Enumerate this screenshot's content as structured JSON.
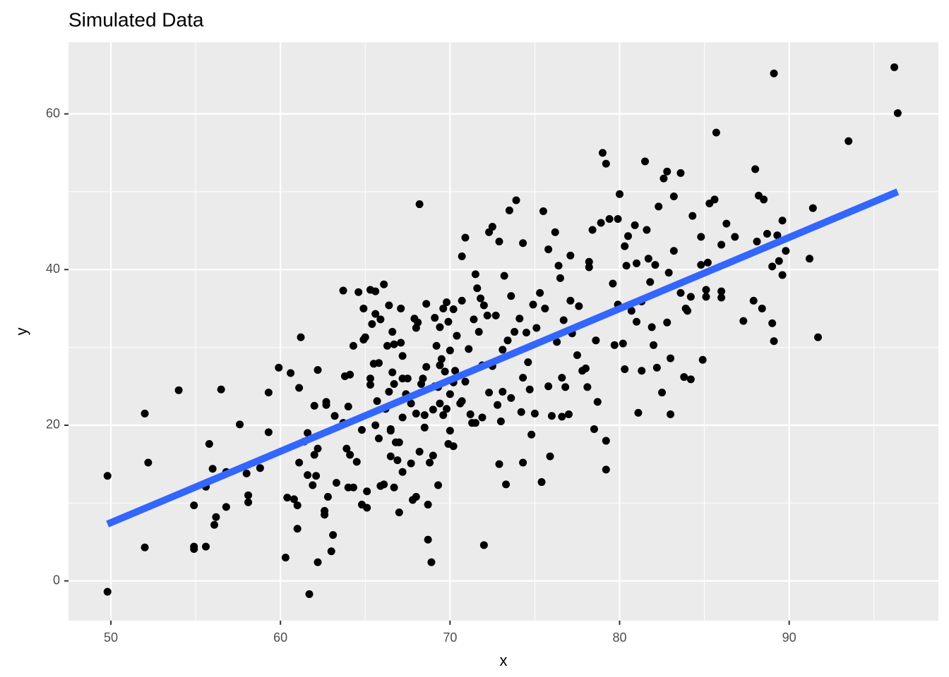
{
  "chart_data": {
    "type": "scatter",
    "title": "Simulated Data",
    "x_label": "x",
    "y_label": "y",
    "xlim": [
      47.5,
      98.8
    ],
    "ylim": [
      -5.1,
      69.2
    ],
    "xticks": [
      50,
      60,
      70,
      80,
      90
    ],
    "yticks": [
      0,
      20,
      40,
      60
    ],
    "x_minor_ticks": [
      55,
      65,
      75,
      85,
      95
    ],
    "y_minor_ticks": [
      10,
      30,
      50
    ],
    "grid": true,
    "color": "#000000",
    "x": [
      49.8,
      49.8,
      52,
      52,
      52.2,
      54,
      54.9,
      54.9,
      54.9,
      55.6,
      55.6,
      55.8,
      56,
      56.1,
      56.2,
      56.5,
      56.8,
      56.8,
      57.6,
      58,
      58.1,
      58.1,
      58.8,
      59.3,
      59.3,
      59.9,
      60.3,
      60.4,
      60.6,
      60.8,
      61,
      61,
      61.1,
      61.1,
      61.2,
      61.4,
      61.6,
      61.6,
      61.7,
      61.9,
      62,
      62,
      62.1,
      62.2,
      62.2,
      62.2,
      62.6,
      62.6,
      62.7,
      62.7,
      62.8,
      63,
      63.1,
      63.2,
      63.3,
      63.7,
      63.7,
      63.8,
      63.9,
      64,
      64,
      64.1,
      64.1,
      64.3,
      64.3,
      64.5,
      64.6,
      64.8,
      64.8,
      64.9,
      64.9,
      65.0,
      65.1,
      65.1,
      65.3,
      65.3,
      65.3,
      65.4,
      65.5,
      65.6,
      65.6,
      65.6,
      65.7,
      65.8,
      65.8,
      65.9,
      65.9,
      66.1,
      66.1,
      66.2,
      66.3,
      66.4,
      66.4,
      66.5,
      66.5,
      66.5,
      66.6,
      66.6,
      66.7,
      66.7,
      66.7,
      66.8,
      66.9,
      67,
      67,
      67.1,
      67.1,
      67.2,
      67.2,
      67.2,
      67.2,
      67.4,
      67.5,
      67.7,
      67.7,
      67.8,
      68.2,
      67.9,
      68,
      68,
      68,
      68.1,
      68.2,
      68.3,
      68.4,
      68.5,
      68.5,
      68.6,
      68.6,
      68.7,
      68.7,
      68.8,
      68.9,
      69,
      69,
      69.1,
      69.1,
      69.2,
      69.3,
      69.3,
      69.4,
      69.4,
      69.4,
      69.5,
      69.6,
      69.6,
      69.7,
      69.8,
      69.8,
      69.9,
      69.9,
      70,
      70,
      70,
      70.2,
      70.2,
      70.2,
      70.3,
      70.4,
      70.6,
      70.7,
      70.7,
      70.9,
      70.7,
      70.9,
      71.1,
      71.2,
      71.3,
      71.4,
      71.5,
      71.5,
      71.6,
      71.7,
      71.8,
      71.9,
      71.9,
      72.0,
      72.0,
      72.2,
      72.3,
      72.3,
      72.5,
      72.5,
      72.7,
      72.8,
      72.9,
      72.9,
      73,
      73.1,
      73.1,
      73.2,
      73.3,
      73.4,
      73.6,
      73.6,
      73.5,
      73.8,
      73.9,
      74.1,
      74.2,
      74.3,
      74.3,
      74.3,
      74.5,
      74.6,
      74.7,
      74.8,
      74.9,
      75,
      75.1,
      75.3,
      75.4,
      75.5,
      75.6,
      75.8,
      75.8,
      75.9,
      76,
      76.2,
      76.3,
      76.4,
      76.5,
      76.6,
      76.6,
      76.7,
      76.8,
      77,
      77.1,
      77.1,
      77.2,
      77.5,
      77.6,
      77.8,
      78,
      78.1,
      78.2,
      78.2,
      78.4,
      78.5,
      78.6,
      78.7,
      78.9,
      79,
      79.2,
      79.2,
      79.2,
      79.4,
      79.6,
      79.7,
      79.9,
      79.9,
      80,
      80.2,
      80.3,
      80.3,
      80.4,
      80.5,
      80.7,
      80.9,
      81,
      81,
      81.1,
      81.3,
      81.3,
      81.5,
      81.6,
      81.7,
      81.8,
      81.9,
      82,
      82.1,
      82.2,
      82.3,
      82.5,
      82.6,
      82.8,
      82.8,
      82.9,
      83,
      83,
      83.2,
      83.2,
      83.6,
      83.6,
      83.8,
      83.9,
      84,
      84.2,
      84.2,
      84.3,
      84.8,
      84.8,
      84.9,
      85.1,
      85.1,
      85.2,
      85.3,
      85.7,
      85.6,
      86,
      86,
      86,
      86.3,
      86.8,
      87.3,
      87.9,
      88,
      88.1,
      88.2,
      88.5,
      88.4,
      88.7,
      89,
      89,
      89.1,
      89.3,
      89.4,
      89.6,
      89.6,
      89.8,
      89.1,
      91.2,
      91.4,
      91.7,
      93.5,
      96.2,
      96.4
    ],
    "y": [
      13.5,
      -1.4,
      21.5,
      4.3,
      15.2,
      24.5,
      9.7,
      4.4,
      4.1,
      12.1,
      4.4,
      17.6,
      14.4,
      7.2,
      8.2,
      24.6,
      9.5,
      14,
      20.1,
      13.8,
      11,
      10.1,
      14.5,
      19.1,
      24.2,
      27.4,
      3,
      10.7,
      26.7,
      10.5,
      9.7,
      6.7,
      24.8,
      15.2,
      31.3,
      17.9,
      19,
      13.6,
      -1.7,
      12.3,
      22.5,
      16.2,
      13.5,
      2.4,
      17,
      27.1,
      9,
      8.5,
      23,
      22.6,
      10.8,
      3.8,
      5.9,
      21.2,
      12.6,
      20.3,
      37.3,
      26.3,
      17,
      12,
      22.4,
      16.2,
      26.5,
      30.2,
      12,
      15.3,
      37.1,
      19.4,
      9.8,
      31,
      35,
      31.3,
      9.4,
      11.5,
      37.4,
      25.2,
      26,
      33,
      27.9,
      20,
      37.2,
      34.3,
      23.1,
      18.3,
      28,
      12.2,
      33.6,
      12.4,
      38.1,
      22.1,
      30.2,
      35.4,
      24.3,
      16,
      19.5,
      19.3,
      26.8,
      32,
      12,
      30.4,
      25.3,
      17.8,
      15.5,
      17.8,
      8.8,
      30.6,
      35,
      26,
      14,
      21,
      28.9,
      24,
      26,
      15.1,
      22.8,
      10.4,
      48.4,
      33.7,
      21.5,
      10.8,
      32.5,
      33.2,
      16.6,
      25.3,
      26,
      19.7,
      21.3,
      27.5,
      35.6,
      9.8,
      5.3,
      15.2,
      2.4,
      16.1,
      22,
      25,
      33.8,
      30.2,
      24.9,
      12.3,
      27.7,
      22.8,
      32.6,
      28.5,
      35,
      21.3,
      26.9,
      22.1,
      35.8,
      17.6,
      33.3,
      29.6,
      19.3,
      24,
      34.9,
      25.5,
      17.3,
      27,
      31.5,
      22.8,
      36,
      41.7,
      44.1,
      23.1,
      25.6,
      29.8,
      21.4,
      20.3,
      33.6,
      39.4,
      20.3,
      37.6,
      32,
      36.3,
      27.7,
      21,
      4.6,
      35.4,
      34.1,
      44.8,
      24.2,
      45.5,
      27.6,
      34.1,
      22.6,
      43.6,
      15,
      20.5,
      29.7,
      24.3,
      39.2,
      12.4,
      30.9,
      36.6,
      23.5,
      47.6,
      32,
      48.9,
      33.7,
      21.7,
      43.4,
      26.1,
      15.2,
      31.9,
      28.1,
      24.6,
      18.8,
      35.5,
      21.5,
      32.5,
      37,
      12.7,
      47.5,
      35,
      42.6,
      25,
      16,
      21.2,
      44.8,
      30.7,
      40.5,
      38.9,
      21.1,
      26.1,
      33.5,
      24.9,
      21.4,
      36,
      41.8,
      31.8,
      29,
      35.3,
      27,
      27.3,
      24.9,
      41,
      40.3,
      45.1,
      19.5,
      30.9,
      23,
      46,
      55,
      53.6,
      14.3,
      18,
      46.5,
      38.2,
      30.3,
      35.5,
      46.5,
      49.7,
      30.5,
      27.2,
      43,
      40.5,
      44.3,
      34.7,
      45.7,
      40.8,
      33.3,
      21.6,
      27,
      35.9,
      53.9,
      45.1,
      41.4,
      38.4,
      32.6,
      30.3,
      40.6,
      27.4,
      48.1,
      24.2,
      51.7,
      52.6,
      33.2,
      39.6,
      21.4,
      28.6,
      49.4,
      42.4,
      37,
      52.4,
      26.2,
      35,
      34.7,
      25.9,
      36.5,
      46.9,
      40.6,
      44.2,
      28.4,
      37.4,
      36.5,
      40.9,
      48.5,
      57.6,
      49,
      43.2,
      37.2,
      36.4,
      45.9,
      44.2,
      33.4,
      36,
      52.9,
      43.6,
      49.5,
      49,
      35,
      44.6,
      40.4,
      33.1,
      30.8,
      44.4,
      41.1,
      46.3,
      39.3,
      42.4,
      65.2,
      41.4,
      47.9,
      31.3,
      56.5,
      66,
      60.1
    ],
    "fit_line": {
      "color": "#3366FF",
      "x": [
        49.8,
        96.4
      ],
      "y": [
        7.3,
        50.0
      ]
    }
  }
}
